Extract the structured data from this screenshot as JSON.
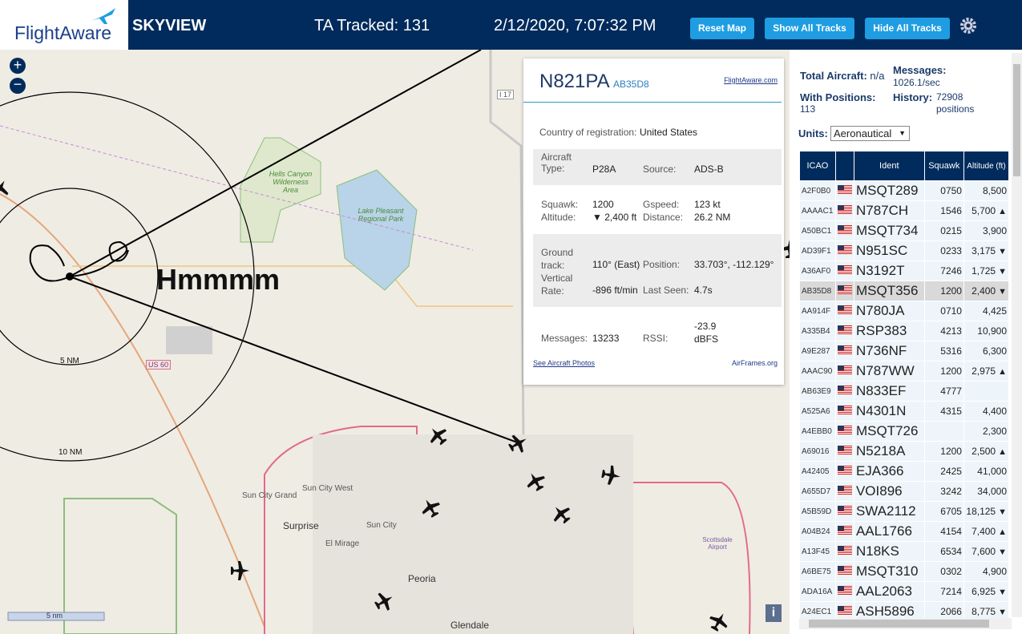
{
  "header": {
    "logo": "FlightAware",
    "title": "SKYVIEW",
    "tracked": "TA Tracked: 131",
    "datetime": "2/12/2020, 7:07:32 PM",
    "buttons": [
      "Reset Map",
      "Show All Tracks",
      "Hide All Tracks"
    ]
  },
  "map": {
    "annotation": "Hmmmm",
    "ring_labels": [
      "5 NM",
      "10 NM"
    ],
    "scale": "5 nm",
    "info": "i",
    "places": [
      "Hells Canyon Wilderness Area",
      "Lake Pleasant Regional Park",
      "Sun City West",
      "Sun City Grand",
      "Surprise",
      "Sun City",
      "El Mirage",
      "Peoria",
      "Glendale",
      "Scottsdale Airport"
    ],
    "roads": [
      "US 60",
      "I 17"
    ]
  },
  "popup": {
    "callsign": "N821PA",
    "hex": "AB35D8",
    "link": "FlightAware.com",
    "country_label": "Country of registration:",
    "country": "United States",
    "fields": [
      [
        "Aircraft Type:",
        "P28A"
      ],
      [
        "Source:",
        "ADS-B"
      ],
      [
        "Squawk:",
        "1200"
      ],
      [
        "Altitude:",
        "▼ 2,400 ft"
      ],
      [
        "Gspeed:",
        "123 kt"
      ],
      [
        "Distance:",
        "26.2 NM"
      ],
      [
        "Ground track:",
        "110° (East)"
      ],
      [
        "Position:",
        "33.703°, -112.129°"
      ],
      [
        "Vertical Rate:",
        "-896 ft/min"
      ],
      [
        "Last Seen:",
        "4.7s"
      ],
      [
        "Messages:",
        "13233"
      ],
      [
        "RSSI:",
        "-23.9 dBFS"
      ]
    ],
    "photos": "See Aircraft Photos",
    "airframes": "AirFrames.org"
  },
  "sidebar": {
    "total_label": "Total Aircraft:",
    "total": "n/a",
    "messages_label": "Messages:",
    "messages": "1026.1/sec",
    "positions_label": "With Positions:",
    "positions": "113",
    "history_label": "History:",
    "history": "72908 positions",
    "units_label": "Units:",
    "units": "Aeronautical",
    "table": {
      "headers": [
        "ICAO",
        "Ident",
        "Squawk",
        "Altitude (ft)"
      ],
      "rows": [
        [
          "A2F0B0",
          "MSQT289",
          "0750",
          "8,500",
          null
        ],
        [
          "AAAAC1",
          "N787CH",
          "1546",
          "5,700",
          "▲"
        ],
        [
          "A50BC1",
          "MSQT734",
          "0215",
          "3,900",
          null
        ],
        [
          "AD39F1",
          "N951SC",
          "0233",
          "3,175",
          "▼"
        ],
        [
          "A36AF0",
          "N3192T",
          "7246",
          "1,725",
          "▼"
        ],
        [
          "AB35D8",
          "MSQT356",
          "1200",
          "2,400",
          "▼"
        ],
        [
          "AA914F",
          "N780JA",
          "0710",
          "4,425",
          null
        ],
        [
          "A335B4",
          "RSP383",
          "4213",
          "10,900",
          null
        ],
        [
          "A9E287",
          "N736NF",
          "5316",
          "6,300",
          null
        ],
        [
          "AAAC90",
          "N787WW",
          "1200",
          "2,975",
          "▲"
        ],
        [
          "AB63E9",
          "N833EF",
          "4777",
          null,
          null
        ],
        [
          "A525A6",
          "N4301N",
          "4315",
          "4,400",
          null
        ],
        [
          "A4EBB0",
          "MSQT726",
          null,
          "2,300",
          null
        ],
        [
          "A69016",
          "N5218A",
          "1200",
          "2,500",
          "▲"
        ],
        [
          "A42405",
          "EJA366",
          "2425",
          "41,000",
          null
        ],
        [
          "A655D7",
          "VOI896",
          "3242",
          "34,000",
          null
        ],
        [
          "A5B59D",
          "SWA2112",
          "6705",
          "18,125",
          "▼"
        ],
        [
          "A04B24",
          "AAL1766",
          "4154",
          "7,400",
          "▲"
        ],
        [
          "A13F45",
          "N18KS",
          "6534",
          "7,600",
          "▼"
        ],
        [
          "A6BE75",
          "MSQT310",
          "0302",
          "4,900",
          null
        ],
        [
          "ADA16A",
          "AAL2063",
          "7214",
          "6,925",
          "▼"
        ],
        [
          "A24EC1",
          "ASH5896",
          "2066",
          "8,775",
          "▼"
        ]
      ],
      "selected": 5
    }
  }
}
